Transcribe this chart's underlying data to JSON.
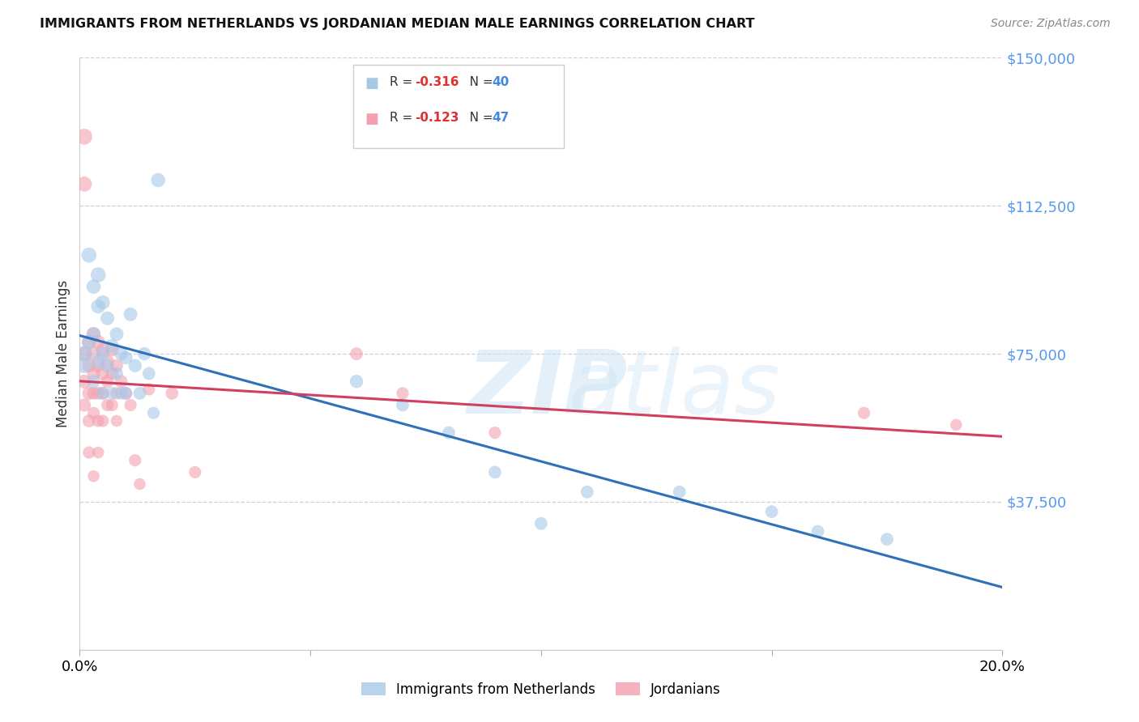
{
  "title": "IMMIGRANTS FROM NETHERLANDS VS JORDANIAN MEDIAN MALE EARNINGS CORRELATION CHART",
  "source": "Source: ZipAtlas.com",
  "ylabel": "Median Male Earnings",
  "yticks": [
    0,
    37500,
    75000,
    112500,
    150000
  ],
  "ytick_labels": [
    "",
    "$37,500",
    "$75,000",
    "$112,500",
    "$150,000"
  ],
  "xmin": 0.0,
  "xmax": 0.2,
  "ymin": 0,
  "ymax": 150000,
  "blue_color": "#a8c8e8",
  "pink_color": "#f4a0b0",
  "line_blue": "#3070b8",
  "line_pink": "#d04060",
  "legend_label_blue": "Immigrants from Netherlands",
  "legend_label_pink": "Jordanians",
  "blue_r": "-0.316",
  "blue_n": "40",
  "pink_r": "-0.123",
  "pink_n": "47",
  "blue_points_x": [
    0.001,
    0.001,
    0.002,
    0.002,
    0.003,
    0.003,
    0.003,
    0.004,
    0.004,
    0.004,
    0.005,
    0.005,
    0.005,
    0.006,
    0.006,
    0.007,
    0.007,
    0.008,
    0.008,
    0.009,
    0.009,
    0.01,
    0.01,
    0.011,
    0.012,
    0.013,
    0.014,
    0.015,
    0.016,
    0.017,
    0.06,
    0.07,
    0.08,
    0.09,
    0.1,
    0.11,
    0.13,
    0.15,
    0.16,
    0.175
  ],
  "blue_points_y": [
    75000,
    72000,
    100000,
    78000,
    92000,
    80000,
    68000,
    95000,
    87000,
    73000,
    88000,
    75000,
    65000,
    84000,
    72000,
    77000,
    65000,
    80000,
    70000,
    75000,
    65000,
    74000,
    65000,
    85000,
    72000,
    65000,
    75000,
    70000,
    60000,
    119000,
    68000,
    62000,
    55000,
    45000,
    32000,
    40000,
    40000,
    35000,
    30000,
    28000
  ],
  "pink_points_x": [
    0.001,
    0.001,
    0.001,
    0.001,
    0.001,
    0.002,
    0.002,
    0.002,
    0.002,
    0.002,
    0.003,
    0.003,
    0.003,
    0.003,
    0.003,
    0.003,
    0.004,
    0.004,
    0.004,
    0.004,
    0.004,
    0.005,
    0.005,
    0.005,
    0.005,
    0.006,
    0.006,
    0.006,
    0.007,
    0.007,
    0.007,
    0.008,
    0.008,
    0.008,
    0.009,
    0.01,
    0.011,
    0.012,
    0.013,
    0.015,
    0.02,
    0.025,
    0.06,
    0.07,
    0.09,
    0.17,
    0.19
  ],
  "pink_points_y": [
    130000,
    118000,
    75000,
    68000,
    62000,
    78000,
    72000,
    65000,
    58000,
    50000,
    80000,
    75000,
    70000,
    65000,
    60000,
    44000,
    78000,
    72000,
    65000,
    58000,
    50000,
    76000,
    70000,
    65000,
    58000,
    73000,
    68000,
    62000,
    76000,
    70000,
    62000,
    72000,
    65000,
    58000,
    68000,
    65000,
    62000,
    48000,
    42000,
    66000,
    65000,
    45000,
    75000,
    65000,
    55000,
    60000,
    57000
  ],
  "blue_sizes": [
    200,
    180,
    180,
    160,
    160,
    150,
    140,
    180,
    160,
    150,
    160,
    150,
    130,
    150,
    140,
    150,
    130,
    150,
    130,
    140,
    130,
    140,
    130,
    150,
    140,
    130,
    140,
    130,
    120,
    160,
    140,
    130,
    130,
    130,
    130,
    130,
    130,
    130,
    130,
    130
  ],
  "pink_sizes": [
    200,
    180,
    160,
    150,
    140,
    160,
    150,
    140,
    130,
    120,
    160,
    150,
    140,
    130,
    120,
    110,
    150,
    140,
    130,
    120,
    110,
    150,
    140,
    130,
    120,
    140,
    130,
    120,
    140,
    130,
    120,
    130,
    120,
    110,
    130,
    130,
    120,
    120,
    110,
    120,
    130,
    120,
    130,
    120,
    120,
    120,
    110
  ]
}
